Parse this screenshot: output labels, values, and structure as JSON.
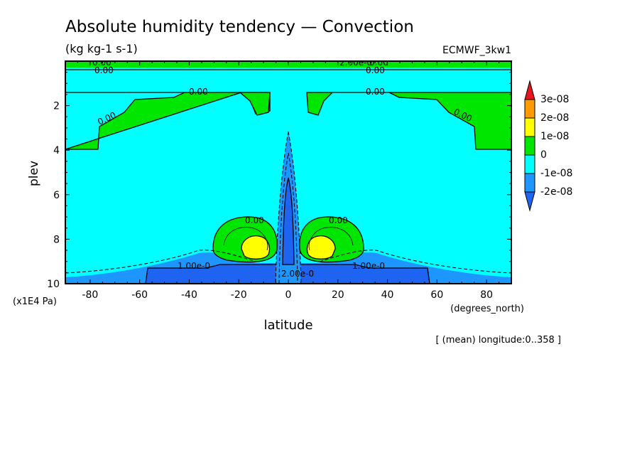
{
  "chart_data": {
    "type": "contour",
    "title": "Absolute humidity tendency — Convection",
    "units": "(kg kg-1 s-1)",
    "dataset": "ECMWF_3kw1",
    "xlabel": "latitude",
    "ylabel": "plev",
    "x_units": "(degrees_north)",
    "y_units": "(x1E4 Pa)",
    "mean_note": "[ (mean) longitude:0..358 ]",
    "xlim": [
      -90,
      90
    ],
    "ylim": [
      10,
      0
    ],
    "x_ticks": [
      "-80",
      "-60",
      "-40",
      "-20",
      "0",
      "20",
      "40",
      "60",
      "80"
    ],
    "x_tick_values": [
      -80,
      -60,
      -40,
      -20,
      0,
      20,
      40,
      60,
      80
    ],
    "y_ticks": [
      "2",
      "4",
      "6",
      "8",
      "10"
    ],
    "y_tick_values": [
      2,
      4,
      6,
      8,
      10
    ],
    "colorbar": {
      "labels": [
        "3e-08",
        "2e-08",
        "1e-08",
        "0",
        "-1e-08",
        "-2e-08"
      ],
      "colors": [
        "#e8141e",
        "#ff9a00",
        "#ffff00",
        "#00e600",
        "#00ffff",
        "#1e96ff",
        "#1e64f0"
      ]
    },
    "contour_labels": [
      "0.00",
      "0.00",
      "0.00",
      "0.00",
      "0.00",
      "0.00",
      "0.00",
      "0.00",
      "0.00",
      "0.00",
      "2.00e-0",
      "1.00e-0",
      "1.00e-0",
      "2.00e-0"
    ],
    "regions": {
      "upper_positive": {
        "value_class": "0",
        "lat_ranges": [
          [
            -90,
            -57
          ],
          [
            57,
            90
          ]
        ],
        "plev": [
          1.5,
          4
        ]
      },
      "positive_maxima": {
        "value_class": "1e-08",
        "lat": [
          -13,
          13
        ],
        "plev": 8.4
      },
      "equatorial_negative": {
        "value_class": "-2e-08",
        "lat": [
          0,
          0
        ],
        "plev": [
          4.3,
          10
        ]
      },
      "near_surface_negative": {
        "value_class": "-2e-08",
        "lat": [
          -58,
          58
        ],
        "plev": [
          9.3,
          10
        ]
      }
    }
  }
}
